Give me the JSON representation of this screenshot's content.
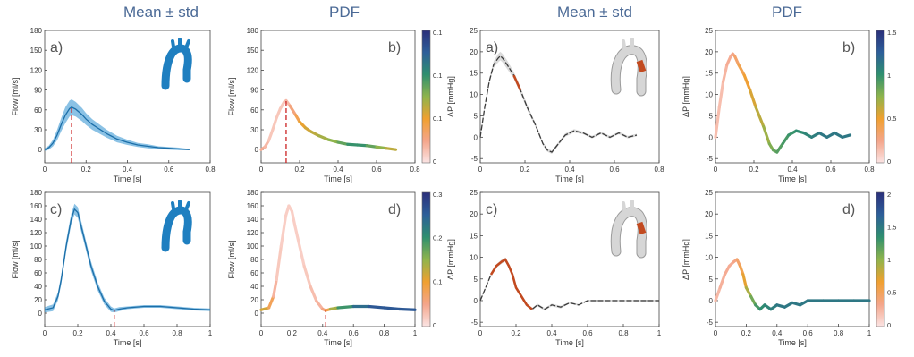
{
  "headers": [
    "Mean ± std",
    "PDF",
    "Mean ± std",
    "PDF"
  ],
  "colors": {
    "blue_band": "#2b8fd0",
    "blue_line": "#1b6ea8",
    "dark_line": "#3a3a3a",
    "red_marker": "#cc2222",
    "geometry_blue": "#1f7fc0",
    "geometry_gray": "#d6d6d6",
    "geometry_highlight": "#c24a20"
  },
  "colormap_pdf": [
    "#fbe4e4",
    "#f4a58a",
    "#f0a030",
    "#8fb44c",
    "#2f8f6f",
    "#2d5f99",
    "#2b2f7a"
  ],
  "chart_data": [
    {
      "type": "line",
      "panel_label": "a)",
      "style": "mean_std",
      "geometry": "blue-aorta",
      "xlabel": "Time [s]",
      "ylabel": "Flow [ml/s]",
      "xlim": [
        0,
        0.8
      ],
      "ylim": [
        -20,
        180
      ],
      "xticks": [
        "0",
        "0.2",
        "0.4",
        "0.6",
        "0.8"
      ],
      "yticks": [
        "0",
        "30",
        "60",
        "90",
        "120",
        "150",
        "180"
      ],
      "marker_x": 0.13,
      "series": [
        {
          "x": [
            0,
            0.02,
            0.04,
            0.06,
            0.08,
            0.1,
            0.12,
            0.13,
            0.15,
            0.18,
            0.2,
            0.23,
            0.26,
            0.3,
            0.35,
            0.4,
            0.45,
            0.5,
            0.55,
            0.6,
            0.65,
            0.7
          ],
          "y": [
            0,
            3,
            10,
            22,
            38,
            52,
            62,
            64,
            61,
            53,
            46,
            38,
            32,
            24,
            16,
            11,
            7,
            5,
            3,
            2,
            1,
            0
          ],
          "std": [
            2,
            3,
            5,
            8,
            10,
            12,
            12,
            12,
            11,
            10,
            9,
            8,
            7,
            6,
            5,
            4,
            3,
            3,
            2,
            2,
            2,
            1
          ]
        }
      ]
    },
    {
      "type": "line",
      "panel_label": "b)",
      "style": "pdf",
      "xlabel": "Time [s]",
      "ylabel": "Flow [ml/s]",
      "xlim": [
        0,
        0.8
      ],
      "ylim": [
        -20,
        180
      ],
      "xticks": [
        "0",
        "0.2",
        "0.4",
        "0.6",
        "0.8"
      ],
      "yticks": [
        "0",
        "30",
        "60",
        "90",
        "120",
        "150",
        "180"
      ],
      "colorbar_ticks": [
        "0",
        "0.1",
        "0.1",
        "0.1"
      ],
      "colorbar_max": 0.13,
      "marker_x": 0.13,
      "series": [
        {
          "x": [
            0,
            0.02,
            0.04,
            0.06,
            0.08,
            0.1,
            0.12,
            0.13,
            0.15,
            0.18,
            0.2,
            0.23,
            0.26,
            0.3,
            0.35,
            0.4,
            0.45,
            0.5,
            0.55,
            0.6,
            0.65,
            0.7
          ],
          "y": [
            0,
            4,
            14,
            30,
            48,
            62,
            72,
            74,
            66,
            52,
            42,
            33,
            27,
            21,
            15,
            11,
            8,
            7,
            6,
            4,
            2,
            0
          ],
          "pdf": [
            0.02,
            0.02,
            0.01,
            0.01,
            0.01,
            0.01,
            0.01,
            0.01,
            0.02,
            0.03,
            0.04,
            0.05,
            0.05,
            0.06,
            0.06,
            0.07,
            0.08,
            0.09,
            0.08,
            0.07,
            0.06,
            0.05
          ]
        }
      ]
    },
    {
      "type": "line",
      "panel_label": "a)",
      "style": "mean_std",
      "geometry": "gray-aorta",
      "xlabel": "Time [s]",
      "ylabel": "ΔP [mmHg]",
      "xlim": [
        0,
        0.8
      ],
      "ylim": [
        -6,
        25
      ],
      "xticks": [
        "0",
        "0.2",
        "0.4",
        "0.6",
        "0.8"
      ],
      "yticks": [
        "-5",
        "0",
        "5",
        "10",
        "15",
        "20",
        "25"
      ],
      "series": [
        {
          "x": [
            0,
            0.02,
            0.04,
            0.06,
            0.08,
            0.09,
            0.1,
            0.12,
            0.15,
            0.18,
            0.21,
            0.25,
            0.28,
            0.3,
            0.32,
            0.35,
            0.38,
            0.42,
            0.46,
            0.5,
            0.54,
            0.58,
            0.62,
            0.66,
            0.7
          ],
          "y": [
            0,
            7,
            13,
            17,
            18.5,
            19,
            18.5,
            17,
            14.5,
            11,
            7,
            2.5,
            -1.5,
            -3,
            -3.5,
            -1.5,
            0.5,
            1.5,
            1,
            0,
            1,
            0,
            1,
            0,
            0.5
          ],
          "std": [
            0.3,
            0.5,
            0.6,
            0.8,
            1,
            1,
            1,
            1,
            0.8,
            0.7,
            0.6,
            0.5,
            0.4,
            0.4,
            0.4,
            0.4,
            0.4,
            0.4,
            0.3,
            0.3,
            0.3,
            0.3,
            0.3,
            0.3,
            0.3
          ],
          "highlight": [
            0.13,
            0.2
          ]
        }
      ]
    },
    {
      "type": "line",
      "panel_label": "b)",
      "style": "pdf",
      "xlabel": "Time [s]",
      "ylabel": "ΔP [mmHg]",
      "xlim": [
        0,
        0.8
      ],
      "ylim": [
        -6,
        25
      ],
      "xticks": [
        "0",
        "0.2",
        "0.4",
        "0.6",
        "0.8"
      ],
      "yticks": [
        "-5",
        "0",
        "5",
        "10",
        "15",
        "20",
        "25"
      ],
      "colorbar_ticks": [
        "0",
        "0.5",
        "1",
        "1.5"
      ],
      "colorbar_max": 2,
      "series": [
        {
          "x": [
            0,
            0.02,
            0.04,
            0.06,
            0.08,
            0.09,
            0.1,
            0.12,
            0.15,
            0.18,
            0.21,
            0.25,
            0.28,
            0.3,
            0.32,
            0.35,
            0.38,
            0.42,
            0.46,
            0.5,
            0.54,
            0.58,
            0.62,
            0.66,
            0.7
          ],
          "y": [
            0,
            7,
            13,
            17,
            19,
            19.5,
            19,
            17,
            14.5,
            11,
            7,
            2.5,
            -1.5,
            -3,
            -3.5,
            -1.5,
            0.5,
            1.5,
            1,
            0,
            1,
            0,
            1,
            0,
            0.5
          ],
          "pdf": [
            0.2,
            0.2,
            0.2,
            0.3,
            0.3,
            0.3,
            0.4,
            0.5,
            0.6,
            0.7,
            0.8,
            0.9,
            1,
            1.1,
            1.2,
            1.2,
            1.3,
            1.3,
            1.4,
            1.4,
            1.5,
            1.5,
            1.5,
            1.5,
            1.5
          ]
        }
      ]
    },
    {
      "type": "line",
      "panel_label": "c)",
      "style": "mean_std",
      "geometry": "blue-aorta",
      "xlabel": "Time [s]",
      "ylabel": "Flow [ml/s]",
      "xlim": [
        0,
        1
      ],
      "ylim": [
        -20,
        180
      ],
      "xticks": [
        "0",
        "0.2",
        "0.4",
        "0.6",
        "0.8",
        "1"
      ],
      "yticks": [
        "0",
        "20",
        "40",
        "60",
        "80",
        "100",
        "120",
        "140",
        "160",
        "180"
      ],
      "marker_x": 0.42,
      "series": [
        {
          "x": [
            0,
            0.05,
            0.08,
            0.1,
            0.13,
            0.16,
            0.18,
            0.2,
            0.22,
            0.25,
            0.28,
            0.32,
            0.36,
            0.4,
            0.42,
            0.45,
            0.5,
            0.6,
            0.7,
            0.8,
            0.9,
            1
          ],
          "y": [
            5,
            8,
            25,
            50,
            100,
            140,
            155,
            150,
            130,
            100,
            70,
            40,
            18,
            6,
            4,
            6,
            8,
            10,
            10,
            8,
            6,
            5
          ],
          "std": [
            4,
            5,
            6,
            7,
            8,
            8,
            8,
            8,
            8,
            7,
            7,
            6,
            5,
            4,
            3,
            3,
            2,
            2,
            2,
            2,
            2,
            2
          ]
        }
      ]
    },
    {
      "type": "line",
      "panel_label": "d)",
      "style": "pdf",
      "xlabel": "Time [s]",
      "ylabel": "Flow [ml/s]",
      "xlim": [
        0,
        1
      ],
      "ylim": [
        -20,
        180
      ],
      "xticks": [
        "0",
        "0.2",
        "0.4",
        "0.6",
        "0.8",
        "1"
      ],
      "yticks": [
        "0",
        "20",
        "40",
        "60",
        "80",
        "100",
        "120",
        "140",
        "160",
        "180"
      ],
      "colorbar_ticks": [
        "0",
        "0.1",
        "0.2",
        "0.3"
      ],
      "colorbar_max": 0.35,
      "marker_x": 0.42,
      "series": [
        {
          "x": [
            0,
            0.05,
            0.08,
            0.1,
            0.13,
            0.16,
            0.18,
            0.2,
            0.22,
            0.25,
            0.28,
            0.32,
            0.36,
            0.4,
            0.42,
            0.45,
            0.5,
            0.6,
            0.7,
            0.8,
            0.9,
            1
          ],
          "y": [
            5,
            8,
            25,
            50,
            100,
            145,
            160,
            152,
            130,
            100,
            70,
            40,
            18,
            6,
            4,
            6,
            8,
            10,
            10,
            8,
            6,
            5
          ],
          "pdf": [
            0.15,
            0.12,
            0.06,
            0.03,
            0.02,
            0.02,
            0.02,
            0.02,
            0.02,
            0.02,
            0.02,
            0.03,
            0.04,
            0.05,
            0.08,
            0.12,
            0.2,
            0.25,
            0.3,
            0.3,
            0.3,
            0.3
          ]
        }
      ]
    },
    {
      "type": "line",
      "panel_label": "c)",
      "style": "mean_std",
      "geometry": "gray-aorta",
      "xlabel": "Time [s]",
      "ylabel": "ΔP [mmHg]",
      "xlim": [
        0,
        1
      ],
      "ylim": [
        -6,
        25
      ],
      "xticks": [
        "0",
        "0.2",
        "0.4",
        "0.6",
        "0.8",
        "1"
      ],
      "yticks": [
        "-5",
        "0",
        "5",
        "10",
        "15",
        "20",
        "25"
      ],
      "series": [
        {
          "x": [
            0,
            0.03,
            0.06,
            0.09,
            0.12,
            0.14,
            0.16,
            0.18,
            0.2,
            0.23,
            0.26,
            0.29,
            0.32,
            0.36,
            0.4,
            0.45,
            0.5,
            0.55,
            0.6,
            0.7,
            0.8,
            0.9,
            1
          ],
          "y": [
            0,
            3,
            6,
            8,
            9,
            9.5,
            8,
            6,
            3,
            1,
            -1,
            -2,
            -1,
            -2,
            -1,
            -1.5,
            -0.5,
            -1,
            0,
            0,
            0,
            0,
            0
          ],
          "std": [
            0.3,
            0.3,
            0.4,
            0.4,
            0.5,
            0.5,
            0.5,
            0.4,
            0.4,
            0.4,
            0.3,
            0.3,
            0.3,
            0.3,
            0.3,
            0.3,
            0.2,
            0.2,
            0.2,
            0.2,
            0.2,
            0.2,
            0.2
          ],
          "highlight": [
            0.05,
            0.3
          ]
        }
      ]
    },
    {
      "type": "line",
      "panel_label": "d)",
      "style": "pdf",
      "xlabel": "Time [s]",
      "ylabel": "ΔP [mmHg]",
      "xlim": [
        0,
        1
      ],
      "ylim": [
        -6,
        25
      ],
      "xticks": [
        "0",
        "0.2",
        "0.4",
        "0.6",
        "0.8",
        "1"
      ],
      "yticks": [
        "-5",
        "0",
        "5",
        "10",
        "15",
        "20",
        "25"
      ],
      "colorbar_ticks": [
        "0",
        "0.5",
        "1",
        "1.5",
        "2"
      ],
      "colorbar_max": 2,
      "series": [
        {
          "x": [
            0,
            0.03,
            0.06,
            0.09,
            0.12,
            0.14,
            0.16,
            0.18,
            0.2,
            0.23,
            0.26,
            0.29,
            0.32,
            0.36,
            0.4,
            0.45,
            0.5,
            0.55,
            0.6,
            0.7,
            0.8,
            0.9,
            1
          ],
          "y": [
            0,
            3,
            6,
            8,
            9,
            9.5,
            8,
            6,
            3,
            1,
            -1,
            -2,
            -1,
            -2,
            -1,
            -1.5,
            -0.5,
            -1,
            0,
            0,
            0,
            0,
            0
          ],
          "pdf": [
            0.2,
            0.25,
            0.3,
            0.3,
            0.3,
            0.4,
            0.5,
            0.6,
            0.8,
            1,
            1.2,
            1.3,
            1.4,
            1.4,
            1.5,
            1.5,
            1.5,
            1.5,
            1.5,
            1.5,
            1.5,
            1.5,
            1.5
          ]
        }
      ]
    }
  ]
}
